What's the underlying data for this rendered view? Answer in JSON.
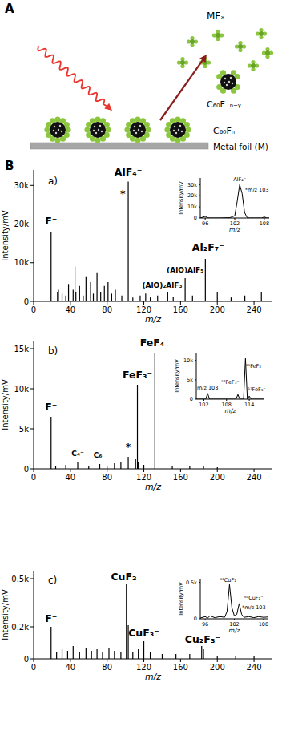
{
  "diagram": {
    "panel": "A",
    "ejected_species": "MFₓ⁻",
    "fragment": "C₆₀F⁻ₙ₋ᵧ",
    "film": "C₆₀Fₙ",
    "substrate": "Metal foil (M)"
  },
  "panel_b": "B",
  "chart_data": [
    {
      "type": "stem",
      "title": "a)",
      "x_label": "m/z",
      "y_label": "Intensity/mV",
      "color": "#000000",
      "grid": false,
      "xlim": [
        0,
        260
      ],
      "xticks": [
        0,
        40,
        80,
        120,
        160,
        200,
        240
      ],
      "ylim": [
        0,
        34000
      ],
      "yticks": [
        0,
        {
          "value": 10000,
          "label": "10k"
        },
        {
          "value": 20000,
          "label": "20k"
        },
        {
          "value": 30000,
          "label": "30k"
        }
      ],
      "x": [
        19,
        26,
        27,
        31,
        35,
        38,
        43,
        45,
        46,
        50,
        54,
        57,
        62,
        65,
        69,
        73,
        77,
        81,
        85,
        89,
        96,
        103,
        108,
        116,
        122,
        127,
        135,
        146,
        152,
        165,
        173,
        187,
        200,
        215,
        230,
        248
      ],
      "values": [
        18000,
        2500,
        3000,
        2000,
        1500,
        4500,
        3000,
        9000,
        2500,
        4000,
        1500,
        6500,
        5000,
        2000,
        7500,
        2500,
        4000,
        5000,
        2000,
        3000,
        1500,
        31000,
        1000,
        1500,
        2000,
        1000,
        1500,
        2500,
        1200,
        6000,
        1500,
        11000,
        2500,
        1000,
        1500,
        2500
      ],
      "annotations": [
        {
          "text": "F⁻",
          "x": 19,
          "y": 20000
        },
        {
          "text": "*",
          "x": 97,
          "y": 27000
        },
        {
          "text": "AlF₄⁻",
          "x": 103,
          "y": 32500
        },
        {
          "text": "(AlO)AlF₅",
          "x": 165,
          "y": 7500
        },
        {
          "text": "(AlO)₂AlF₃",
          "x": 140,
          "y": 3600
        },
        {
          "text": "Al₂F₇⁻",
          "x": 190,
          "y": 13000
        }
      ],
      "inset": {
        "type": "line",
        "x_label": "m/z",
        "y_label": "Intensity/mV",
        "color": "#000000",
        "grid": false,
        "xlim": [
          95,
          109
        ],
        "xticks": [
          96,
          102,
          108
        ],
        "ylim": [
          0,
          36000
        ],
        "yticks": [
          0,
          {
            "value": 10000,
            "label": "10k"
          },
          {
            "value": 20000,
            "label": "20k"
          },
          {
            "value": 30000,
            "label": "30k"
          }
        ],
        "x": [
          95,
          96,
          96.5,
          97,
          99,
          101,
          102,
          102.5,
          103,
          103.5,
          104,
          104.5,
          105,
          107.5,
          108,
          108.5,
          109
        ],
        "values": [
          0,
          1500,
          200,
          0,
          0,
          300,
          2000,
          15000,
          30000,
          22000,
          5000,
          500,
          0,
          0,
          1000,
          0,
          0
        ],
        "annotations": [
          {
            "text": "AlF₄⁻",
            "x": 103,
            "y": 33000
          },
          {
            "text": "*m/z 103",
            "x": 106.5,
            "y": 24000
          }
        ]
      }
    },
    {
      "type": "stem",
      "title": "b)",
      "x_label": "m/z",
      "y_label": "Intensity/mV",
      "color": "#000000",
      "grid": false,
      "xlim": [
        0,
        260
      ],
      "xticks": [
        0,
        40,
        80,
        120,
        160,
        200,
        240
      ],
      "ylim": [
        0,
        16000
      ],
      "yticks": [
        0,
        {
          "value": 5000,
          "label": "5k"
        },
        {
          "value": 10000,
          "label": "10k"
        },
        {
          "value": 15000,
          "label": "15k"
        }
      ],
      "x": [
        19,
        24,
        35,
        48,
        60,
        72,
        80,
        88,
        95,
        103,
        111,
        113,
        114,
        120,
        132,
        151,
        170,
        185,
        200
      ],
      "values": [
        6500,
        400,
        500,
        800,
        300,
        600,
        400,
        700,
        900,
        1500,
        1200,
        10500,
        800,
        500,
        14500,
        300,
        300,
        400,
        200
      ],
      "annotations": [
        {
          "text": "F⁻",
          "x": 19,
          "y": 7300
        },
        {
          "text": "C₄⁻",
          "x": 48,
          "y": 1600
        },
        {
          "text": "C₆⁻",
          "x": 72,
          "y": 1400
        },
        {
          "text": "*",
          "x": 103,
          "y": 2300
        },
        {
          "text": "FeF₃⁻",
          "x": 113,
          "y": 11300
        },
        {
          "text": "FeF₄⁻",
          "x": 132,
          "y": 15300
        }
      ],
      "inset": {
        "type": "line",
        "x_label": "m/z",
        "y_label": "Intensity/mV",
        "color": "#000000",
        "grid": false,
        "xlim": [
          100,
          118
        ],
        "xticks": [
          102,
          108,
          114
        ],
        "ylim": [
          0,
          12000
        ],
        "yticks": [
          0,
          {
            "value": 5000,
            "label": "5k"
          },
          {
            "value": 10000,
            "label": "10k"
          }
        ],
        "x": [
          100,
          102.5,
          103,
          103.5,
          110.5,
          111,
          111.5,
          112.5,
          113,
          113.5,
          114,
          114.5,
          118
        ],
        "values": [
          0,
          0,
          1500,
          0,
          0,
          1200,
          0,
          0,
          10500,
          0,
          800,
          0,
          0
        ],
        "annotations": [
          {
            "text": "m/z 103",
            "x": 103,
            "y": 2400
          },
          {
            "text": "⁵⁴FeF₃⁻",
            "x": 109,
            "y": 4000
          },
          {
            "text": "⁵⁶FeF₃⁻",
            "x": 115.5,
            "y": 8000
          },
          {
            "text": "⁵⁷FeF₃⁻",
            "x": 116,
            "y": 2000
          }
        ]
      }
    },
    {
      "type": "stem",
      "title": "c)",
      "x_label": "m/z",
      "y_label": "Intensity/mV",
      "color": "#000000",
      "grid": false,
      "xlim": [
        0,
        260
      ],
      "xticks": [
        0,
        40,
        80,
        120,
        160,
        200,
        240
      ],
      "ylim": [
        0,
        550
      ],
      "yticks": [
        0,
        {
          "value": 200,
          "label": "0.2k"
        },
        {
          "value": 500,
          "label": "0.5k"
        }
      ],
      "x": [
        19,
        25,
        31,
        37,
        43,
        50,
        57,
        63,
        69,
        75,
        82,
        88,
        95,
        101,
        103,
        108,
        114,
        120,
        127,
        140,
        155,
        170,
        183,
        185,
        200,
        220,
        240
      ],
      "values": [
        200,
        40,
        60,
        50,
        80,
        40,
        70,
        50,
        60,
        40,
        70,
        50,
        40,
        470,
        210,
        40,
        60,
        110,
        40,
        30,
        30,
        30,
        80,
        60,
        20,
        20,
        20
      ],
      "annotations": [
        {
          "text": "F⁻",
          "x": 19,
          "y": 230
        },
        {
          "text": "CuF₂⁻",
          "x": 101,
          "y": 490
        },
        {
          "text": "CuF₃⁻",
          "x": 120,
          "y": 140
        },
        {
          "text": "Cu₂F₃⁻",
          "x": 184,
          "y": 100
        }
      ],
      "inset": {
        "type": "line",
        "x_label": "m/z",
        "y_label": "Intensity/mV",
        "color": "#000000",
        "grid": false,
        "xlim": [
          95,
          109
        ],
        "xticks": [
          96,
          102,
          108
        ],
        "ylim": [
          0,
          550
        ],
        "yticks": [
          0,
          {
            "value": 500,
            "label": "0.5k"
          }
        ],
        "x": [
          95,
          96,
          96.5,
          97,
          98,
          99,
          100,
          100.5,
          101,
          101.5,
          102,
          102.5,
          103,
          103.5,
          104,
          105,
          106,
          107,
          108,
          109
        ],
        "values": [
          10,
          30,
          10,
          40,
          15,
          30,
          20,
          100,
          470,
          150,
          40,
          60,
          210,
          60,
          20,
          30,
          15,
          30,
          20,
          25
        ],
        "annotations": [
          {
            "text": "⁶³CuF₂⁻",
            "x": 101,
            "y": 510
          },
          {
            "text": "⁶⁵CuF₂⁻",
            "x": 106,
            "y": 260
          },
          {
            "text": "*m/z 103",
            "x": 106,
            "y": 130
          }
        ]
      }
    }
  ]
}
